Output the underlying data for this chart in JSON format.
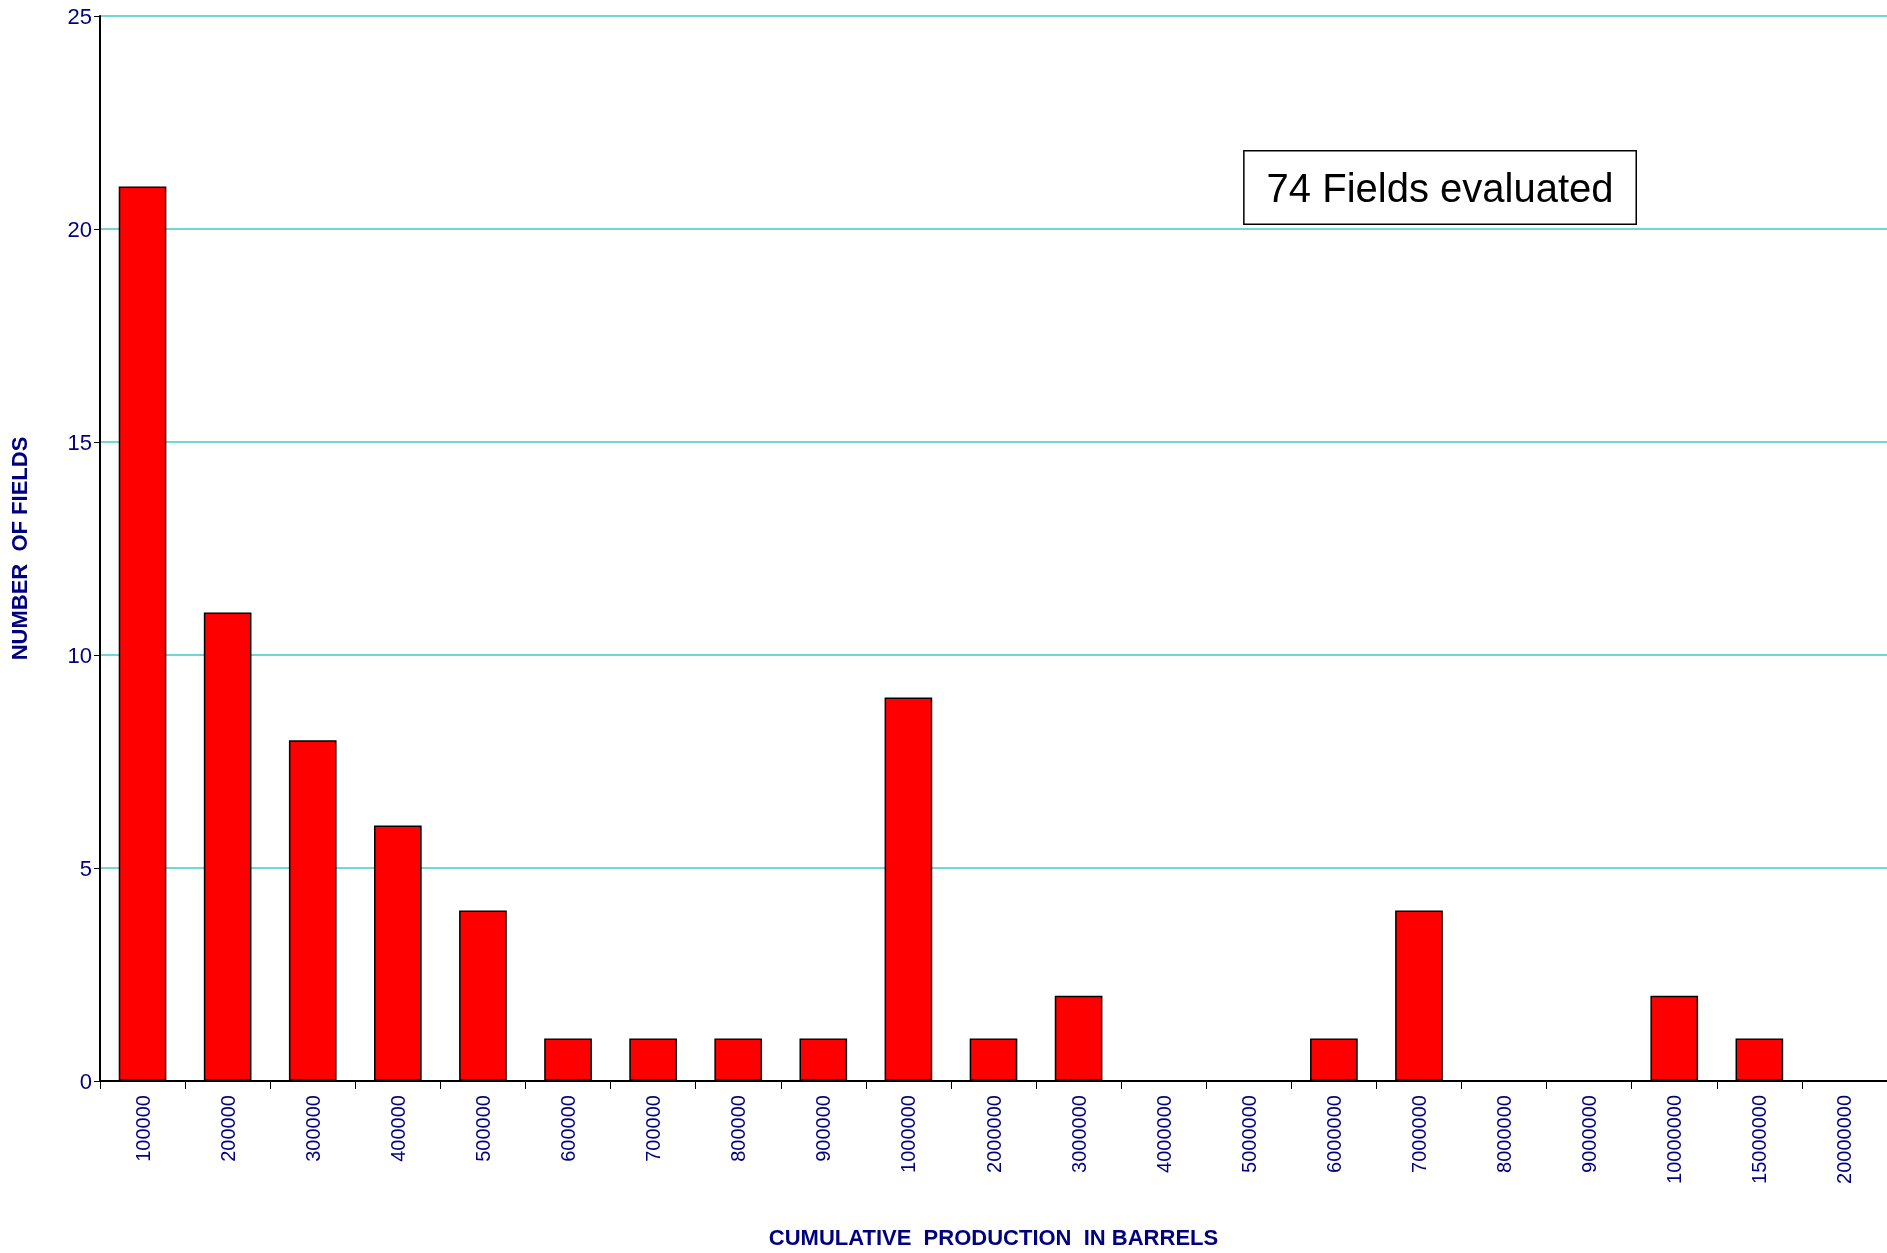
{
  "chart_data": {
    "type": "bar",
    "xlabel": "CUMULATIVE  PRODUCTION  IN BARRELS",
    "ylabel": "NUMBER  OF FIELDS",
    "categories": [
      "100000",
      "200000",
      "300000",
      "400000",
      "500000",
      "600000",
      "700000",
      "800000",
      "900000",
      "1000000",
      "2000000",
      "3000000",
      "4000000",
      "5000000",
      "6000000",
      "7000000",
      "8000000",
      "9000000",
      "10000000",
      "15000000",
      "20000000"
    ],
    "values": [
      21,
      11,
      8,
      6,
      4,
      1,
      1,
      1,
      1,
      9,
      1,
      2,
      0,
      0,
      1,
      4,
      0,
      0,
      2,
      1,
      0
    ],
    "color": "#ff0000",
    "ylim": [
      0,
      25
    ],
    "yticks": [
      0,
      5,
      10,
      15,
      20,
      25
    ],
    "grid": "y",
    "annotations": [
      "74 Fields evaluated"
    ]
  }
}
